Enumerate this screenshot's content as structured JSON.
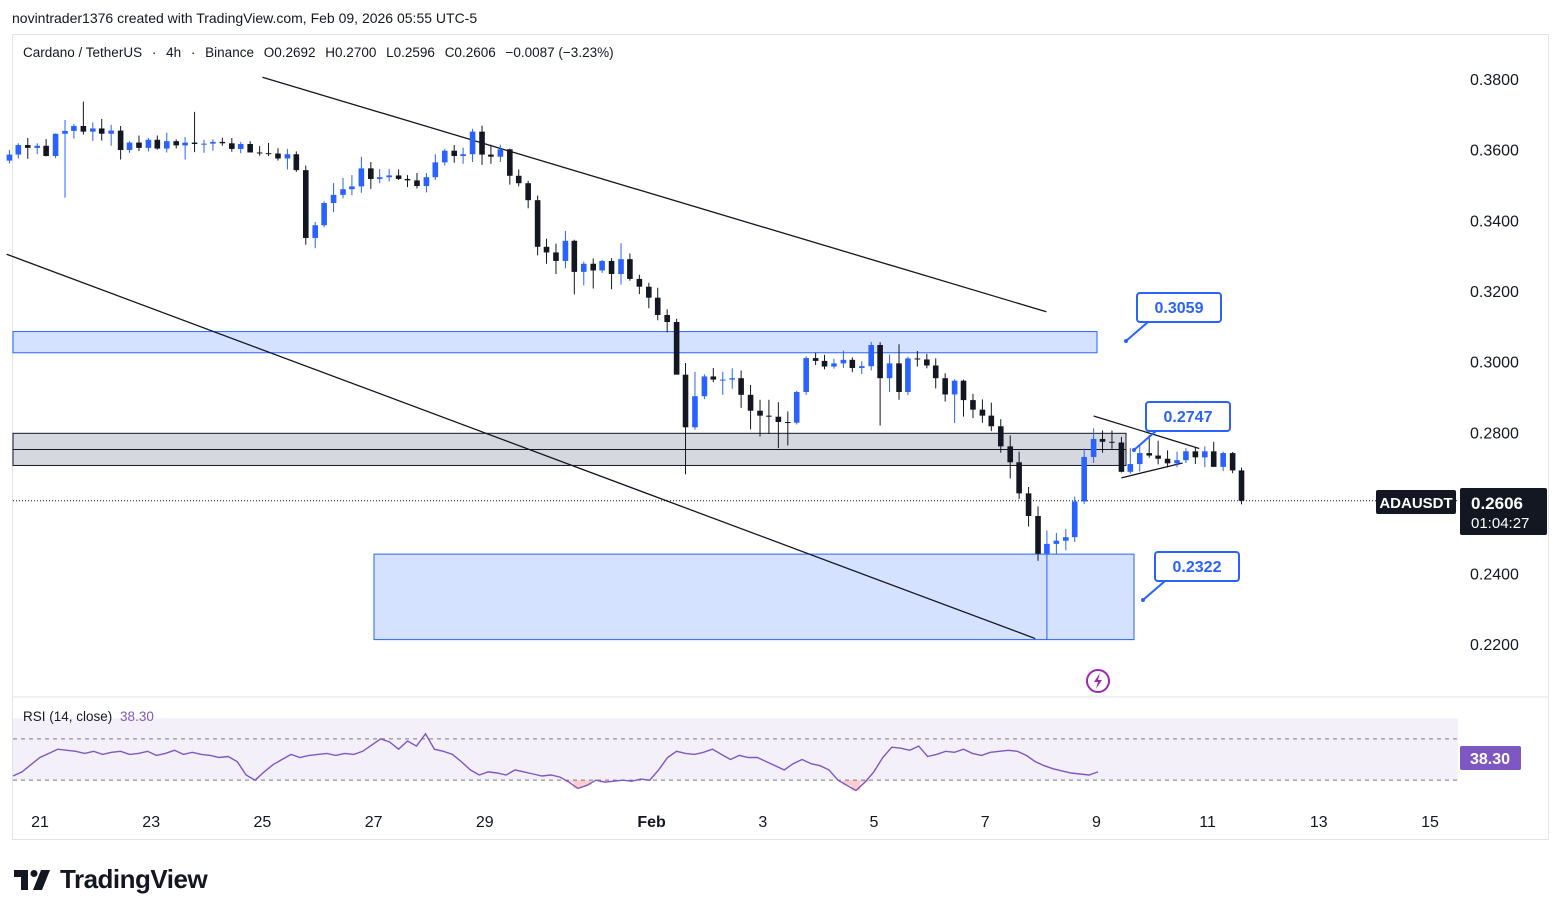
{
  "credit": "novintrader1376 created with TradingView.com, Feb 09, 2026 05:55 UTC-5",
  "legend": {
    "symbol": "Cardano / TetherUS",
    "interval": "4h",
    "exchange": "Binance",
    "open": "O0.2692",
    "high": "H0.2700",
    "low": "L0.2596",
    "close": "C0.2606",
    "change": "−0.0087 (−3.23%)"
  },
  "rsi": {
    "label": "RSI (14, close)",
    "value": "38.30",
    "badge": "38.30"
  },
  "price_tag": {
    "ticker": "ADAUSDT",
    "price": "0.2606",
    "countdown": "01:04:27"
  },
  "callouts": [
    {
      "label": "0.3059"
    },
    {
      "label": "0.2747"
    },
    {
      "label": "0.2322"
    }
  ],
  "logo": {
    "text": "TradingView"
  },
  "colors": {
    "up": "#2962ff",
    "down": "#131722",
    "zone_blue": "#d3e0ff",
    "zone_gray": "#d1d4dc",
    "rsi": "#7e57c2"
  },
  "chart_data": {
    "type": "candlestick",
    "y_axis": {
      "ticks": [
        0.38,
        0.36,
        0.34,
        0.32,
        0.3,
        0.28,
        0.24,
        0.22
      ],
      "tick_labels": [
        "0.3800",
        "0.3600",
        "0.3400",
        "0.3200",
        "0.3000",
        "0.2800",
        "0.2400",
        "0.2200"
      ],
      "range": [
        0.2127,
        0.3924
      ]
    },
    "x_axis": {
      "tick_labels": [
        "21",
        "23",
        "25",
        "27",
        "29",
        "Feb",
        "3",
        "5",
        "7",
        "9",
        "11",
        "13",
        "15"
      ],
      "tick_days": [
        21,
        23,
        25,
        27,
        29,
        32,
        34,
        36,
        38,
        40,
        42,
        44,
        46
      ]
    },
    "candles": [
      [
        20.45,
        0.3569,
        0.3599,
        0.3561,
        0.3586
      ],
      [
        20.61,
        0.3586,
        0.3618,
        0.3575,
        0.3613
      ],
      [
        20.78,
        0.3613,
        0.3633,
        0.3574,
        0.3605
      ],
      [
        20.95,
        0.3605,
        0.3618,
        0.3587,
        0.3611
      ],
      [
        21.11,
        0.3611,
        0.363,
        0.3581,
        0.3582
      ],
      [
        21.28,
        0.3582,
        0.3646,
        0.3576,
        0.3645
      ],
      [
        21.45,
        0.3645,
        0.3684,
        0.3464,
        0.3653
      ],
      [
        21.61,
        0.3653,
        0.3673,
        0.3631,
        0.3667
      ],
      [
        21.78,
        0.3667,
        0.3736,
        0.3643,
        0.3651
      ],
      [
        21.95,
        0.3651,
        0.3677,
        0.3625,
        0.366
      ],
      [
        22.11,
        0.366,
        0.3687,
        0.3626,
        0.3645
      ],
      [
        22.28,
        0.3645,
        0.367,
        0.3611,
        0.3654
      ],
      [
        22.45,
        0.3654,
        0.3667,
        0.3572,
        0.3599
      ],
      [
        22.61,
        0.3599,
        0.3624,
        0.3591,
        0.362
      ],
      [
        22.78,
        0.362,
        0.364,
        0.3596,
        0.3605
      ],
      [
        22.95,
        0.3605,
        0.3633,
        0.3595,
        0.3628
      ],
      [
        23.11,
        0.3628,
        0.364,
        0.36,
        0.3603
      ],
      [
        23.28,
        0.3603,
        0.3648,
        0.3592,
        0.3624
      ],
      [
        23.45,
        0.3624,
        0.3629,
        0.3603,
        0.3612
      ],
      [
        23.61,
        0.3612,
        0.3636,
        0.3572,
        0.362
      ],
      [
        23.78,
        0.362,
        0.3707,
        0.3593,
        0.3616
      ],
      [
        23.95,
        0.3616,
        0.3628,
        0.3591,
        0.3617
      ],
      [
        24.11,
        0.3617,
        0.3629,
        0.3597,
        0.3622
      ],
      [
        24.28,
        0.3622,
        0.3634,
        0.3611,
        0.3618
      ],
      [
        24.45,
        0.3618,
        0.3633,
        0.3594,
        0.3602
      ],
      [
        24.61,
        0.3602,
        0.3622,
        0.359,
        0.3616
      ],
      [
        24.78,
        0.3616,
        0.3624,
        0.3602,
        0.3592
      ],
      [
        24.95,
        0.3592,
        0.361,
        0.3583,
        0.359
      ],
      [
        25.11,
        0.359,
        0.3619,
        0.3582,
        0.3589
      ],
      [
        25.28,
        0.3589,
        0.3604,
        0.3569,
        0.3575
      ],
      [
        25.45,
        0.3575,
        0.3602,
        0.3544,
        0.3587
      ],
      [
        25.61,
        0.3587,
        0.3595,
        0.3537,
        0.3542
      ],
      [
        25.78,
        0.3542,
        0.3555,
        0.3331,
        0.335
      ],
      [
        25.95,
        0.335,
        0.3395,
        0.3321,
        0.3386
      ],
      [
        26.11,
        0.3386,
        0.3454,
        0.338,
        0.3449
      ],
      [
        26.28,
        0.3449,
        0.3505,
        0.3423,
        0.3472
      ],
      [
        26.45,
        0.3472,
        0.352,
        0.3462,
        0.3488
      ],
      [
        26.61,
        0.3488,
        0.3528,
        0.3471,
        0.3496
      ],
      [
        26.78,
        0.3496,
        0.358,
        0.3478,
        0.3547
      ],
      [
        26.95,
        0.3547,
        0.3565,
        0.3489,
        0.3517
      ],
      [
        27.11,
        0.3517,
        0.3545,
        0.3505,
        0.3522
      ],
      [
        27.28,
        0.3522,
        0.3545,
        0.351,
        0.3527
      ],
      [
        27.45,
        0.3527,
        0.3544,
        0.3514,
        0.3517
      ],
      [
        27.61,
        0.3517,
        0.3528,
        0.3494,
        0.3513
      ],
      [
        27.78,
        0.3513,
        0.3534,
        0.349,
        0.3497
      ],
      [
        27.95,
        0.3497,
        0.3534,
        0.3479,
        0.3522
      ],
      [
        28.11,
        0.3522,
        0.3587,
        0.3514,
        0.3564
      ],
      [
        28.28,
        0.3564,
        0.3602,
        0.3555,
        0.3597
      ],
      [
        28.45,
        0.3597,
        0.3613,
        0.3563,
        0.3582
      ],
      [
        28.61,
        0.3582,
        0.3606,
        0.356,
        0.3587
      ],
      [
        28.78,
        0.3587,
        0.3659,
        0.3565,
        0.3651
      ],
      [
        28.95,
        0.3651,
        0.3668,
        0.3557,
        0.3586
      ],
      [
        29.11,
        0.3586,
        0.3614,
        0.356,
        0.358
      ],
      [
        29.28,
        0.358,
        0.3614,
        0.3565,
        0.3601
      ],
      [
        29.45,
        0.3601,
        0.3603,
        0.3501,
        0.3526
      ],
      [
        29.61,
        0.3526,
        0.3544,
        0.3496,
        0.3505
      ],
      [
        29.78,
        0.3505,
        0.3512,
        0.3434,
        0.3457
      ],
      [
        29.95,
        0.3457,
        0.347,
        0.3301,
        0.3325
      ],
      [
        30.11,
        0.3325,
        0.3348,
        0.3277,
        0.3309
      ],
      [
        30.28,
        0.3309,
        0.3334,
        0.3248,
        0.3285
      ],
      [
        30.45,
        0.3285,
        0.337,
        0.3264,
        0.3342
      ],
      [
        30.61,
        0.3342,
        0.3345,
        0.319,
        0.3254
      ],
      [
        30.78,
        0.3254,
        0.3283,
        0.3216,
        0.3277
      ],
      [
        30.95,
        0.3277,
        0.3292,
        0.3207,
        0.3258
      ],
      [
        31.11,
        0.3258,
        0.3288,
        0.3251,
        0.3285
      ],
      [
        31.28,
        0.3285,
        0.3293,
        0.3205,
        0.3248
      ],
      [
        31.45,
        0.3248,
        0.3335,
        0.3218,
        0.329
      ],
      [
        31.61,
        0.329,
        0.3306,
        0.3229,
        0.3234
      ],
      [
        31.78,
        0.3234,
        0.3246,
        0.3191,
        0.3212
      ],
      [
        31.95,
        0.3212,
        0.3223,
        0.3151,
        0.3181
      ],
      [
        32.11,
        0.3181,
        0.3209,
        0.3117,
        0.3132
      ],
      [
        32.28,
        0.3132,
        0.3148,
        0.3083,
        0.3112
      ],
      [
        32.45,
        0.3112,
        0.3121,
        0.2969,
        0.2963
      ],
      [
        32.61,
        0.2963,
        0.2996,
        0.2681,
        0.2814
      ],
      [
        32.78,
        0.2814,
        0.2971,
        0.2807,
        0.2902
      ],
      [
        32.95,
        0.2902,
        0.2964,
        0.2894,
        0.2958
      ],
      [
        33.11,
        0.2958,
        0.2982,
        0.2942,
        0.2949
      ],
      [
        33.28,
        0.2949,
        0.2971,
        0.2906,
        0.2949
      ],
      [
        33.45,
        0.2949,
        0.2981,
        0.2923,
        0.2953
      ],
      [
        33.61,
        0.2953,
        0.2975,
        0.2869,
        0.2906
      ],
      [
        33.78,
        0.2906,
        0.2934,
        0.2808,
        0.2861
      ],
      [
        33.95,
        0.2861,
        0.2892,
        0.2788,
        0.2847
      ],
      [
        34.11,
        0.2847,
        0.2892,
        0.2795,
        0.2844
      ],
      [
        34.28,
        0.2844,
        0.2885,
        0.2755,
        0.2829
      ],
      [
        34.45,
        0.2829,
        0.2859,
        0.2763,
        0.2827
      ],
      [
        34.61,
        0.2827,
        0.2917,
        0.2822,
        0.2914
      ],
      [
        34.78,
        0.2914,
        0.3015,
        0.2906,
        0.301
      ],
      [
        34.95,
        0.301,
        0.3025,
        0.299,
        0.3002
      ],
      [
        35.11,
        0.3002,
        0.3019,
        0.2978,
        0.2986
      ],
      [
        35.28,
        0.2986,
        0.3008,
        0.298,
        0.2995
      ],
      [
        35.45,
        0.2995,
        0.3031,
        0.2982,
        0.3005
      ],
      [
        35.61,
        0.3005,
        0.3012,
        0.297,
        0.2982
      ],
      [
        35.78,
        0.2982,
        0.3001,
        0.2965,
        0.2987
      ],
      [
        35.95,
        0.2987,
        0.3056,
        0.2975,
        0.3047
      ],
      [
        36.11,
        0.3047,
        0.3055,
        0.2819,
        0.2953
      ],
      [
        36.28,
        0.2953,
        0.302,
        0.2914,
        0.2995
      ],
      [
        36.45,
        0.2995,
        0.3049,
        0.2892,
        0.2914
      ],
      [
        36.61,
        0.2914,
        0.3014,
        0.2905,
        0.3009
      ],
      [
        36.78,
        0.3009,
        0.303,
        0.2986,
        0.3006
      ],
      [
        36.95,
        0.3006,
        0.3022,
        0.2981,
        0.2989
      ],
      [
        37.11,
        0.2989,
        0.3009,
        0.2924,
        0.2953
      ],
      [
        37.28,
        0.2953,
        0.2967,
        0.2887,
        0.2907
      ],
      [
        37.45,
        0.2907,
        0.295,
        0.2826,
        0.2946
      ],
      [
        37.61,
        0.2946,
        0.2949,
        0.2844,
        0.2891
      ],
      [
        37.78,
        0.2891,
        0.2909,
        0.284,
        0.2864
      ],
      [
        37.95,
        0.2864,
        0.2893,
        0.2827,
        0.2847
      ],
      [
        38.11,
        0.2847,
        0.2884,
        0.2803,
        0.2817
      ],
      [
        38.28,
        0.2817,
        0.2837,
        0.2742,
        0.276
      ],
      [
        38.45,
        0.276,
        0.2791,
        0.2669,
        0.2715
      ],
      [
        38.61,
        0.2715,
        0.2745,
        0.2611,
        0.2627
      ],
      [
        38.78,
        0.2627,
        0.2645,
        0.2533,
        0.2563
      ],
      [
        38.95,
        0.2563,
        0.259,
        0.2436,
        0.2456
      ],
      [
        39.11,
        0.2456,
        0.2522,
        0.2212,
        0.2484
      ],
      [
        39.28,
        0.2484,
        0.2515,
        0.2455,
        0.2493
      ],
      [
        39.45,
        0.2493,
        0.2526,
        0.2466,
        0.2503
      ],
      [
        39.61,
        0.2503,
        0.2618,
        0.249,
        0.2604
      ],
      [
        39.78,
        0.2604,
        0.2754,
        0.2597,
        0.273
      ],
      [
        39.95,
        0.273,
        0.2811,
        0.2713,
        0.2781
      ],
      [
        40.11,
        0.2781,
        0.2805,
        0.2742,
        0.2773
      ],
      [
        40.28,
        0.2773,
        0.2805,
        0.2753,
        0.2771
      ],
      [
        40.45,
        0.2771,
        0.2787,
        0.2686,
        0.2688
      ],
      [
        40.61,
        0.2688,
        0.2755,
        0.2683,
        0.271
      ],
      [
        40.78,
        0.271,
        0.2762,
        0.2689,
        0.2741
      ],
      [
        40.95,
        0.2741,
        0.2792,
        0.2728,
        0.2734
      ],
      [
        41.11,
        0.2734,
        0.2776,
        0.2709,
        0.2725
      ],
      [
        41.28,
        0.2725,
        0.2749,
        0.27,
        0.2712
      ],
      [
        41.45,
        0.2712,
        0.2745,
        0.2701,
        0.2721
      ],
      [
        41.61,
        0.2721,
        0.2755,
        0.2713,
        0.2746
      ],
      [
        41.78,
        0.2746,
        0.2759,
        0.271,
        0.2729
      ],
      [
        41.95,
        0.2729,
        0.276,
        0.2701,
        0.2746
      ],
      [
        42.11,
        0.2746,
        0.2773,
        0.2702,
        0.2702
      ],
      [
        42.28,
        0.2702,
        0.2745,
        0.269,
        0.2741
      ],
      [
        42.45,
        0.2741,
        0.2744,
        0.2684,
        0.2692
      ],
      [
        42.61,
        0.2692,
        0.27,
        0.2596,
        0.2606
      ]
    ],
    "rsi": {
      "period": 14,
      "last": 38.3,
      "upper_band": 70,
      "lower_band": 30,
      "values": [
        34,
        38,
        45,
        52,
        56,
        60,
        59,
        58,
        56,
        58,
        55,
        57,
        58,
        55,
        56,
        58,
        54,
        56,
        59,
        55,
        57,
        55,
        54,
        52,
        53,
        48,
        35,
        30,
        38,
        45,
        50,
        55,
        52,
        54,
        55,
        56,
        54,
        56,
        55,
        58,
        64,
        70,
        67,
        60,
        68,
        63,
        75,
        60,
        58,
        55,
        48,
        40,
        35,
        38,
        37,
        35,
        40,
        38,
        36,
        34,
        35,
        33,
        28,
        22,
        25,
        30,
        28,
        29,
        30,
        29,
        31,
        30,
        40,
        52,
        58,
        56,
        55,
        57,
        60,
        55,
        50,
        54,
        52,
        52,
        48,
        44,
        40,
        46,
        50,
        46,
        44,
        40,
        30,
        25,
        20,
        28,
        38,
        52,
        62,
        61,
        59,
        63,
        53,
        55,
        58,
        57,
        60,
        56,
        54,
        57,
        58,
        59,
        58,
        54,
        48,
        44,
        41,
        39,
        37,
        36,
        35,
        38
      ]
    },
    "zones": [
      {
        "type": "blue",
        "top": 0.3085,
        "bottom": 0.3025
      },
      {
        "type": "gray",
        "top": 0.2797,
        "bottom": 0.2706
      },
      {
        "type": "blue",
        "top": 0.2455,
        "bottom": 0.2213
      }
    ],
    "level_line": 0.2751,
    "trendlines": [
      {
        "x1": 25.0,
        "y1": 0.3805,
        "x2": 39.1,
        "y2": 0.3141
      },
      {
        "x1": 20.4,
        "y1": 0.3304,
        "x2": 38.9,
        "y2": 0.2216
      },
      {
        "x1": 39.95,
        "y1": 0.2846,
        "x2": 41.85,
        "y2": 0.2754
      },
      {
        "x1": 40.45,
        "y1": 0.2671,
        "x2": 41.55,
        "y2": 0.2713
      }
    ]
  }
}
